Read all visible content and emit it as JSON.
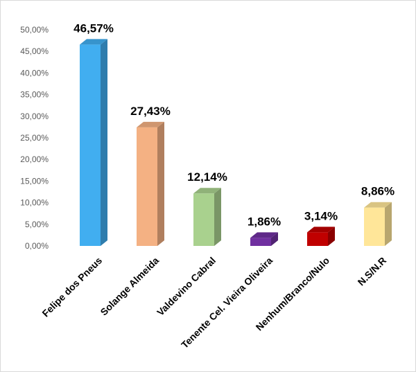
{
  "chart_data": {
    "type": "bar",
    "title": "",
    "xlabel": "",
    "ylabel": "",
    "ylim": [
      0,
      50
    ],
    "y_ticks": [
      "0,00%",
      "5,00%",
      "10,00%",
      "15,00%",
      "20,00%",
      "25,00%",
      "30,00%",
      "35,00%",
      "40,00%",
      "45,00%",
      "50,00%"
    ],
    "grid": false,
    "legend": "none",
    "style": "3d-columns",
    "categories": [
      "Felipe dos Pneus",
      "Solange Almeida",
      "Valdevino Cabral",
      "Tenente Cel. Vieira Oliveira",
      "Nenhum/Branco/Nulo",
      "N.S/N.R"
    ],
    "values": [
      46.57,
      27.43,
      12.14,
      1.86,
      3.14,
      8.86
    ],
    "data_labels": [
      "46,57%",
      "27,43%",
      "12,14%",
      "1,86%",
      "3,14%",
      "8,86%"
    ],
    "colors": [
      "#41aef0",
      "#f4b183",
      "#a9d18e",
      "#7030a0",
      "#c00000",
      "#ffe699"
    ]
  }
}
